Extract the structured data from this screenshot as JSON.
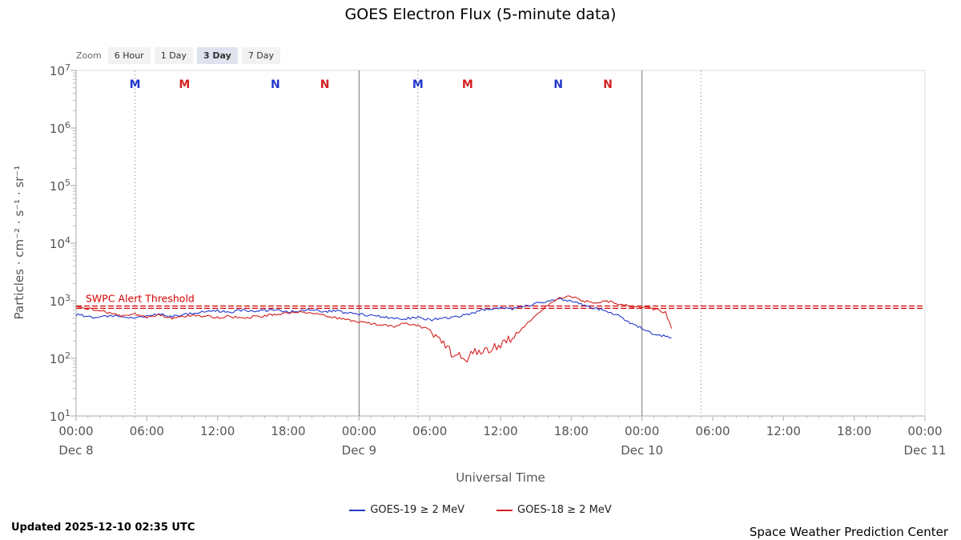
{
  "title": "GOES Electron Flux (5-minute data)",
  "zoom": {
    "label": "Zoom",
    "options": [
      {
        "label": "6 Hour",
        "selected": false
      },
      {
        "label": "1 Day",
        "selected": false
      },
      {
        "label": "3 Day",
        "selected": true
      },
      {
        "label": "7 Day",
        "selected": false
      }
    ]
  },
  "y_axis": {
    "title": "Particles · cm⁻² · s⁻¹ · sr⁻¹",
    "exponents": [
      7,
      6,
      5,
      4,
      3,
      2,
      1
    ]
  },
  "x_axis": {
    "title": "Universal Time",
    "tick_hours": [
      0,
      6,
      12,
      18,
      24,
      30,
      36,
      42,
      48,
      54,
      60,
      66,
      72
    ],
    "tick_labels": [
      "00:00",
      "06:00",
      "12:00",
      "18:00",
      "00:00",
      "06:00",
      "12:00",
      "18:00",
      "00:00",
      "06:00",
      "12:00",
      "18:00",
      "00:00"
    ],
    "date_hours": [
      0,
      24,
      48,
      72
    ],
    "date_labels": [
      "Dec 8",
      "Dec 9",
      "Dec 10",
      "Dec 11"
    ]
  },
  "threshold": {
    "label": "SWPC Alert Threshold",
    "log_values": [
      2.91,
      2.87
    ],
    "color": "#d40000"
  },
  "plot_markers": [
    {
      "hour": 5.0,
      "label": "M",
      "color": "#2238cc"
    },
    {
      "hour": 9.2,
      "label": "M",
      "color": "#d42020"
    },
    {
      "hour": 16.9,
      "label": "N",
      "color": "#2238cc"
    },
    {
      "hour": 21.1,
      "label": "N",
      "color": "#d42020"
    },
    {
      "hour": 29.0,
      "label": "M",
      "color": "#2238cc"
    },
    {
      "hour": 33.2,
      "label": "M",
      "color": "#d42020"
    },
    {
      "hour": 40.9,
      "label": "N",
      "color": "#2238cc"
    },
    {
      "hour": 45.1,
      "label": "N",
      "color": "#d42020"
    }
  ],
  "day_boundary_hours": [
    24,
    48
  ],
  "dotted_line_hours": [
    5,
    29,
    53
  ],
  "legend": [
    {
      "label": "GOES-19 ≥ 2 MeV",
      "color": "#2238cc"
    },
    {
      "label": "GOES-18 ≥ 2 MeV",
      "color": "#d42020"
    }
  ],
  "updated": "Updated 2025-12-10 02:35 UTC",
  "credit": "Space Weather Prediction Center",
  "chart_data": {
    "type": "line",
    "title": "GOES Electron Flux (5-minute data)",
    "xlabel": "Universal Time",
    "ylabel": "Particles · cm⁻² · s⁻¹ · sr⁻¹",
    "x_unit": "hours since 2025-12-08 00:00 UTC",
    "y_scale": "log10",
    "ylim_log": [
      1,
      7
    ],
    "xlim_hours": [
      0,
      72
    ],
    "threshold_log10": 2.89,
    "series": [
      {
        "name": "GOES-19 ≥ 2 MeV",
        "color": "#2238cc",
        "points_log10": [
          [
            0,
            2.76
          ],
          [
            1,
            2.73
          ],
          [
            2,
            2.71
          ],
          [
            3,
            2.75
          ],
          [
            4,
            2.72
          ],
          [
            5,
            2.7
          ],
          [
            6,
            2.74
          ],
          [
            7,
            2.77
          ],
          [
            8,
            2.73
          ],
          [
            9,
            2.76
          ],
          [
            10,
            2.79
          ],
          [
            11,
            2.81
          ],
          [
            12,
            2.83
          ],
          [
            13,
            2.8
          ],
          [
            14,
            2.84
          ],
          [
            15,
            2.81
          ],
          [
            16,
            2.83
          ],
          [
            17,
            2.85
          ],
          [
            18,
            2.81
          ],
          [
            19,
            2.83
          ],
          [
            20,
            2.85
          ],
          [
            21,
            2.81
          ],
          [
            22,
            2.83
          ],
          [
            23,
            2.79
          ],
          [
            24,
            2.77
          ],
          [
            25,
            2.74
          ],
          [
            26,
            2.72
          ],
          [
            27,
            2.7
          ],
          [
            28,
            2.69
          ],
          [
            29,
            2.72
          ],
          [
            30,
            2.67
          ],
          [
            31,
            2.69
          ],
          [
            32,
            2.72
          ],
          [
            33,
            2.75
          ],
          [
            34,
            2.81
          ],
          [
            35,
            2.86
          ],
          [
            36,
            2.88
          ],
          [
            37,
            2.86
          ],
          [
            38,
            2.9
          ],
          [
            39,
            2.95
          ],
          [
            40,
            3.0
          ],
          [
            41,
            3.02
          ],
          [
            42,
            3.0
          ],
          [
            43,
            2.93
          ],
          [
            44,
            2.87
          ],
          [
            45,
            2.83
          ],
          [
            46,
            2.74
          ],
          [
            47,
            2.62
          ],
          [
            48,
            2.52
          ],
          [
            49,
            2.42
          ],
          [
            50,
            2.38
          ],
          [
            50.5,
            2.36
          ]
        ]
      },
      {
        "name": "GOES-18 ≥ 2 MeV",
        "color": "#d42020",
        "points_log10": [
          [
            0,
            2.9
          ],
          [
            1,
            2.87
          ],
          [
            2,
            2.83
          ],
          [
            3,
            2.78
          ],
          [
            4,
            2.73
          ],
          [
            5,
            2.77
          ],
          [
            6,
            2.71
          ],
          [
            7,
            2.75
          ],
          [
            8,
            2.7
          ],
          [
            9,
            2.73
          ],
          [
            10,
            2.75
          ],
          [
            11,
            2.73
          ],
          [
            12,
            2.71
          ],
          [
            13,
            2.73
          ],
          [
            14,
            2.7
          ],
          [
            15,
            2.72
          ],
          [
            16,
            2.74
          ],
          [
            17,
            2.77
          ],
          [
            18,
            2.79
          ],
          [
            19,
            2.81
          ],
          [
            20,
            2.78
          ],
          [
            21,
            2.74
          ],
          [
            22,
            2.7
          ],
          [
            23,
            2.67
          ],
          [
            24,
            2.63
          ],
          [
            25,
            2.61
          ],
          [
            26,
            2.58
          ],
          [
            27,
            2.56
          ],
          [
            28,
            2.61
          ],
          [
            29,
            2.56
          ],
          [
            30,
            2.5
          ],
          [
            31,
            2.28
          ],
          [
            32,
            2.05
          ],
          [
            33,
            2.0
          ],
          [
            34,
            2.12
          ],
          [
            35,
            2.16
          ],
          [
            36,
            2.26
          ],
          [
            37,
            2.36
          ],
          [
            38,
            2.56
          ],
          [
            39,
            2.76
          ],
          [
            40,
            2.92
          ],
          [
            41,
            3.05
          ],
          [
            42,
            3.08
          ],
          [
            43,
            3.0
          ],
          [
            44,
            2.97
          ],
          [
            45,
            3.0
          ],
          [
            46,
            2.94
          ],
          [
            47,
            2.91
          ],
          [
            48,
            2.89
          ],
          [
            49,
            2.86
          ],
          [
            50,
            2.8
          ],
          [
            50.5,
            2.52
          ]
        ]
      }
    ]
  }
}
